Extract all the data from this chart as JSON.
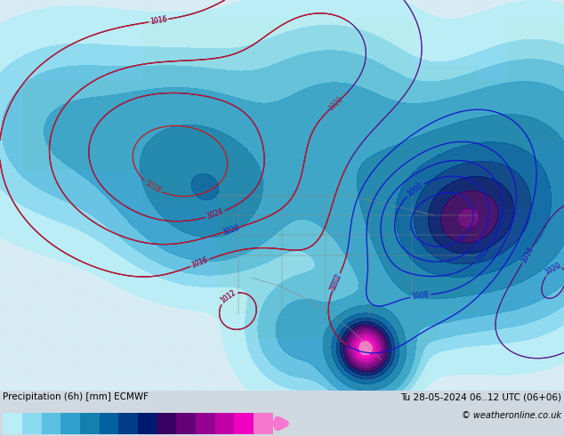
{
  "title_left": "Precipitation (6h) [mm] ECMWF",
  "title_right": "Tu 28-05-2024 06..12 UTC (06+06)",
  "credit": "© weatheronline.co.uk",
  "colorbar_levels": [
    0.1,
    0.5,
    1,
    2,
    5,
    10,
    15,
    20,
    25,
    30,
    35,
    40,
    45,
    50
  ],
  "colorbar_colors": [
    "#b8eef8",
    "#8adaf0",
    "#5cc0e0",
    "#30a0cc",
    "#1480b0",
    "#0060a0",
    "#003c88",
    "#001870",
    "#380060",
    "#660078",
    "#940090",
    "#c200a8",
    "#f000c0",
    "#f878d0"
  ],
  "ocean_color": "#d8ecf4",
  "land_color": "#c8dca0",
  "mountain_color": "#b8c890",
  "bg_color": "#d0d8e0",
  "bottom_bg": "#ffffff",
  "fig_width": 6.34,
  "fig_height": 4.9,
  "dpi": 100,
  "map_extent": [
    -175,
    -45,
    10,
    88
  ]
}
